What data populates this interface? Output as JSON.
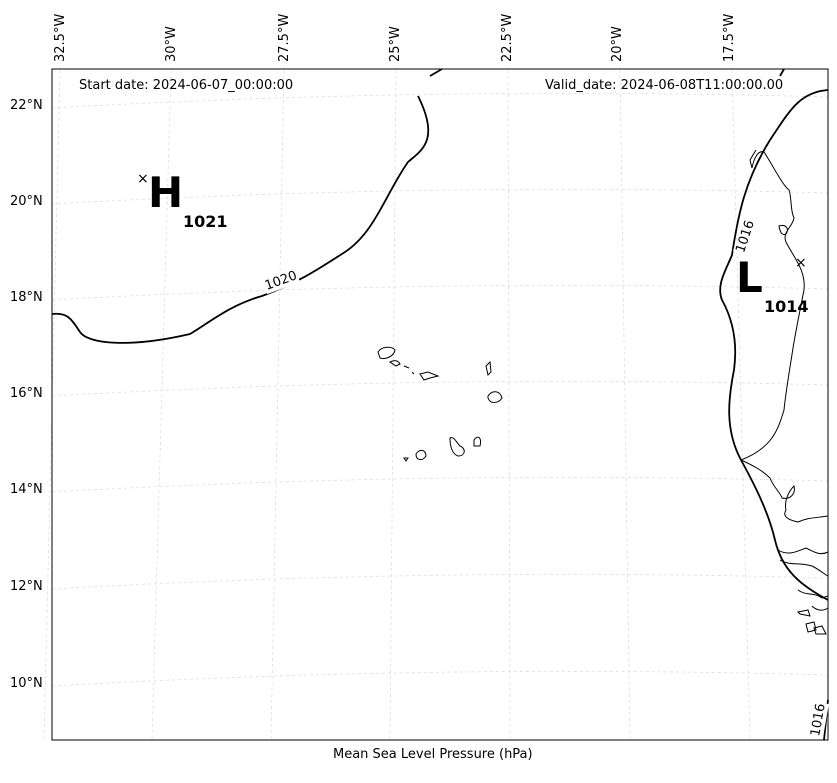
{
  "map": {
    "start_label": "Start date: 2024-06-07_00:00:00",
    "valid_label": "Valid_date: 2024-06-08T11:00:00.00",
    "caption": "Mean Sea Level Pressure (hPa)",
    "lat_labels": [
      "22°N",
      "20°N",
      "18°N",
      "16°N",
      "14°N",
      "12°N",
      "10°N"
    ],
    "lon_labels": [
      "32.5°W",
      "30°W",
      "27.5°W",
      "25°W",
      "22.5°W",
      "20°W",
      "17.5°W"
    ],
    "isobar_labels": [
      "1020",
      "1016",
      "1016"
    ],
    "high": {
      "letter": "H",
      "value": "1021",
      "marker": "×"
    },
    "low": {
      "letter": "L",
      "value": "1014",
      "marker": "×"
    }
  }
}
